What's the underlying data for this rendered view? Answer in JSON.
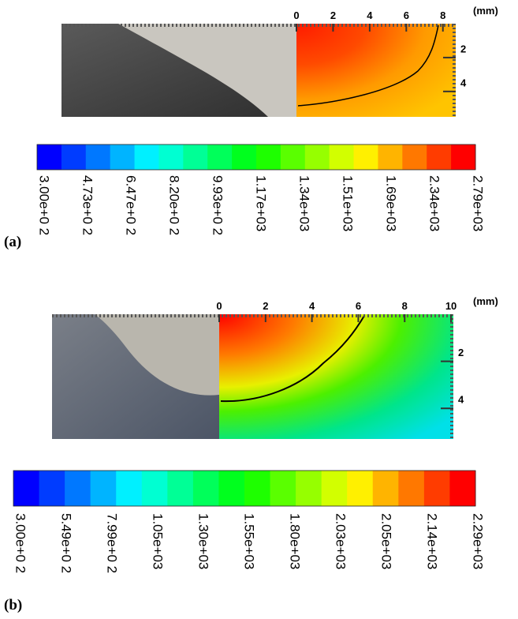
{
  "panels": [
    {
      "label": "(a)",
      "unit": "(mm)",
      "xticks": [
        0,
        2,
        4,
        6,
        8
      ],
      "xlim": [
        0,
        8.7
      ],
      "yticks": [
        2,
        4
      ],
      "ylim": [
        0,
        5.5
      ],
      "colorbar_labels": [
        "3.00e+0 2",
        "4.73e+0 2",
        "6.47e+0 2",
        "8.20e+0 2",
        "9.93e+0 2",
        "1.17e+03",
        "1.34e+03",
        "1.51e+03",
        "1.69e+03",
        "2.34e+03",
        "2.79e+03"
      ]
    },
    {
      "label": "(b)",
      "unit": "(mm)",
      "xticks": [
        0,
        2,
        4,
        6,
        8,
        10
      ],
      "xlim": [
        0,
        10.1
      ],
      "yticks": [
        2,
        4
      ],
      "ylim": [
        0,
        5.3
      ],
      "colorbar_labels": [
        "3.00e+0 2",
        "5.49e+0 2",
        "7.99e+0 2",
        "1.05e+03",
        "1.30e+03",
        "1.55e+03",
        "1.80e+03",
        "2.03e+03",
        "2.05e+03",
        "2.14e+03",
        "2.29e+03"
      ]
    }
  ]
}
